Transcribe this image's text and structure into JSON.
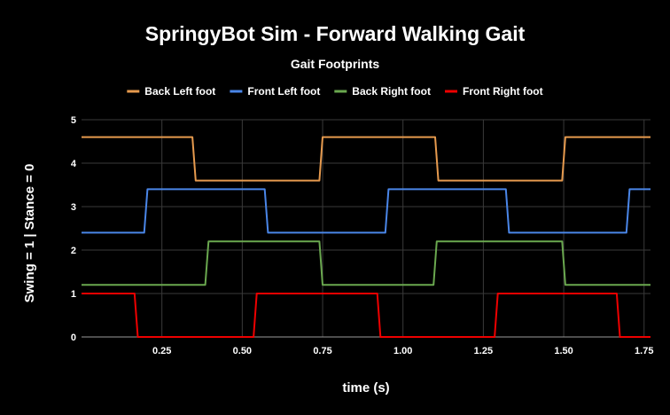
{
  "chart_data": {
    "type": "line",
    "title": "SpringyBot Sim - Forward Walking Gait",
    "subtitle": "Gait Footprints",
    "xlabel": "time (s)",
    "ylabel": "Swing = 1  |  Stance = 0",
    "xlim": [
      0,
      1.77
    ],
    "ylim": [
      0,
      5
    ],
    "x_ticks": [
      0.25,
      0.5,
      0.75,
      1.0,
      1.25,
      1.5,
      1.75
    ],
    "x_tick_labels": [
      "0.25",
      "0.50",
      "0.75",
      "1.00",
      "1.25",
      "1.50",
      "1.75"
    ],
    "y_ticks": [
      0,
      1,
      2,
      3,
      4,
      5
    ],
    "y_tick_labels": [
      "0",
      "1",
      "2",
      "3",
      "4",
      "5"
    ],
    "grid": true,
    "legend_position": "top",
    "series": [
      {
        "name": "Back Left foot",
        "color": "#e69a4e",
        "x": [
          0,
          0.345,
          0.355,
          0.74,
          0.75,
          1.1,
          1.11,
          1.495,
          1.505,
          1.77
        ],
        "y": [
          4.6,
          4.6,
          3.6,
          3.6,
          4.6,
          4.6,
          3.6,
          3.6,
          4.6,
          4.6
        ]
      },
      {
        "name": "Front Left foot",
        "color": "#4a86e8",
        "x": [
          0,
          0.195,
          0.205,
          0.57,
          0.58,
          0.945,
          0.955,
          1.32,
          1.33,
          1.695,
          1.705,
          1.77
        ],
        "y": [
          2.4,
          2.4,
          3.4,
          3.4,
          2.4,
          2.4,
          3.4,
          3.4,
          2.4,
          2.4,
          3.4,
          3.4
        ]
      },
      {
        "name": "Back Right foot",
        "color": "#6aa84f",
        "x": [
          0,
          0.385,
          0.395,
          0.74,
          0.75,
          1.095,
          1.105,
          1.495,
          1.505,
          1.77
        ],
        "y": [
          1.2,
          1.2,
          2.2,
          2.2,
          1.2,
          1.2,
          2.2,
          2.2,
          1.2,
          1.2
        ]
      },
      {
        "name": "Front Right foot",
        "color": "#ee0000",
        "x": [
          0,
          0.165,
          0.175,
          0.535,
          0.545,
          0.92,
          0.93,
          1.285,
          1.295,
          1.665,
          1.675,
          1.77
        ],
        "y": [
          1.0,
          1.0,
          0.0,
          0.0,
          1.0,
          1.0,
          0.0,
          0.0,
          1.0,
          1.0,
          0.0,
          0.0
        ]
      }
    ]
  }
}
